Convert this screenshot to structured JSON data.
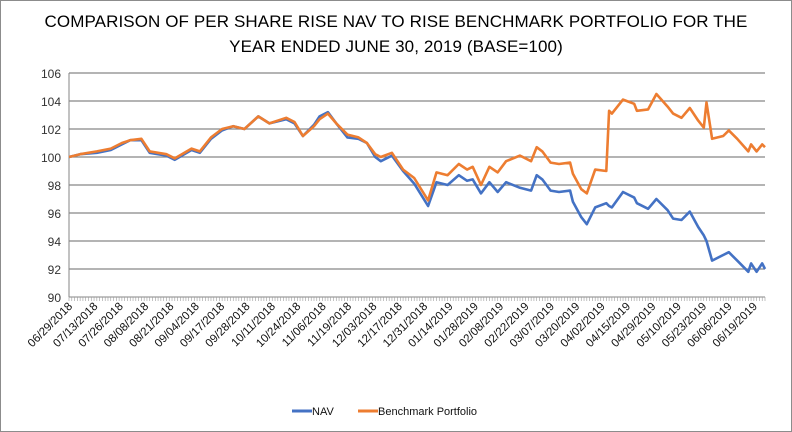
{
  "chart_data": {
    "type": "line",
    "title": [
      "COMPARISON OF PER SHARE RISE NAV TO RISE BENCHMARK PORTFOLIO FOR THE",
      "YEAR ENDED JUNE 30, 2019 (BASE=100)"
    ],
    "xlabel": "",
    "ylabel": "",
    "ylim": [
      90,
      106
    ],
    "yticks": [
      90,
      92,
      94,
      96,
      98,
      100,
      102,
      104,
      106
    ],
    "x_range_trading_days": [
      0,
      250
    ],
    "x_tick_labels": [
      "06/29/2018",
      "07/13/2018",
      "07/26/2018",
      "08/08/2018",
      "08/21/2018",
      "09/04/2018",
      "09/17/2018",
      "09/28/2018",
      "10/11/2018",
      "10/24/2018",
      "11/06/2018",
      "11/19/2018",
      "12/03/2018",
      "12/17/2018",
      "12/31/2018",
      "01/14/2019",
      "01/28/2019",
      "02/08/2019",
      "02/22/2019",
      "03/07/2019",
      "03/20/2019",
      "04/02/2019",
      "04/15/2019",
      "04/29/2019",
      "05/10/2019",
      "05/23/2019",
      "06/06/2019",
      "06/19/2019"
    ],
    "grid": "horizontal",
    "legend": "bottom",
    "x": [
      0,
      4,
      10,
      15,
      19,
      22,
      26,
      29,
      35,
      38,
      44,
      47,
      51,
      55,
      59,
      63,
      68,
      72,
      78,
      81,
      84,
      88,
      90,
      93,
      96,
      100,
      104,
      107,
      110,
      112,
      116,
      120,
      124,
      129,
      132,
      136,
      140,
      143,
      145,
      148,
      151,
      154,
      157,
      162,
      166,
      168,
      170,
      173,
      176,
      180,
      181,
      184,
      186,
      189,
      193,
      194,
      195,
      199,
      203,
      204,
      208,
      211,
      215,
      217,
      220,
      223,
      226,
      228,
      229,
      231,
      235,
      237,
      240,
      244,
      245,
      247,
      249,
      250
    ],
    "series": [
      {
        "name": "NAV",
        "color": "#4472c4",
        "values": [
          100,
          100.2,
          100.3,
          100.5,
          100.9,
          101.2,
          101.2,
          100.3,
          100.1,
          99.8,
          100.5,
          100.3,
          101.3,
          101.9,
          102.2,
          102.0,
          102.9,
          102.4,
          102.7,
          102.4,
          101.5,
          102.3,
          102.9,
          103.2,
          102.4,
          101.4,
          101.3,
          101.0,
          100.0,
          99.7,
          100.1,
          99.0,
          98.1,
          96.5,
          98.2,
          98.0,
          98.7,
          98.3,
          98.4,
          97.4,
          98.2,
          97.5,
          98.2,
          97.8,
          97.6,
          98.7,
          98.4,
          97.6,
          97.5,
          97.6,
          96.8,
          95.7,
          95.2,
          96.4,
          96.7,
          96.5,
          96.4,
          97.5,
          97.1,
          96.7,
          96.3,
          97.0,
          96.2,
          95.6,
          95.5,
          96.1,
          95.0,
          94.4,
          94.0,
          92.6,
          93.0,
          93.2,
          92.6,
          91.8,
          92.4,
          91.8,
          92.4,
          92.0
        ]
      },
      {
        "name": "Benchmark Portfolio",
        "color": "#ed7d31",
        "values": [
          100,
          100.2,
          100.4,
          100.6,
          101.0,
          101.2,
          101.3,
          100.4,
          100.2,
          99.9,
          100.6,
          100.4,
          101.4,
          102.0,
          102.2,
          102.0,
          102.9,
          102.4,
          102.8,
          102.5,
          101.5,
          102.2,
          102.7,
          103.1,
          102.4,
          101.6,
          101.4,
          101.0,
          100.2,
          100.0,
          100.3,
          99.1,
          98.5,
          96.9,
          98.9,
          98.7,
          99.5,
          99.1,
          99.3,
          98.0,
          99.3,
          98.9,
          99.7,
          100.1,
          99.7,
          100.7,
          100.4,
          99.6,
          99.5,
          99.6,
          98.8,
          97.7,
          97.4,
          99.1,
          99.0,
          103.3,
          103.1,
          104.1,
          103.8,
          103.3,
          103.4,
          104.5,
          103.6,
          103.1,
          102.8,
          103.5,
          102.6,
          102.1,
          103.9,
          101.3,
          101.5,
          101.9,
          101.3,
          100.4,
          100.9,
          100.4,
          100.9,
          100.7
        ]
      }
    ]
  }
}
